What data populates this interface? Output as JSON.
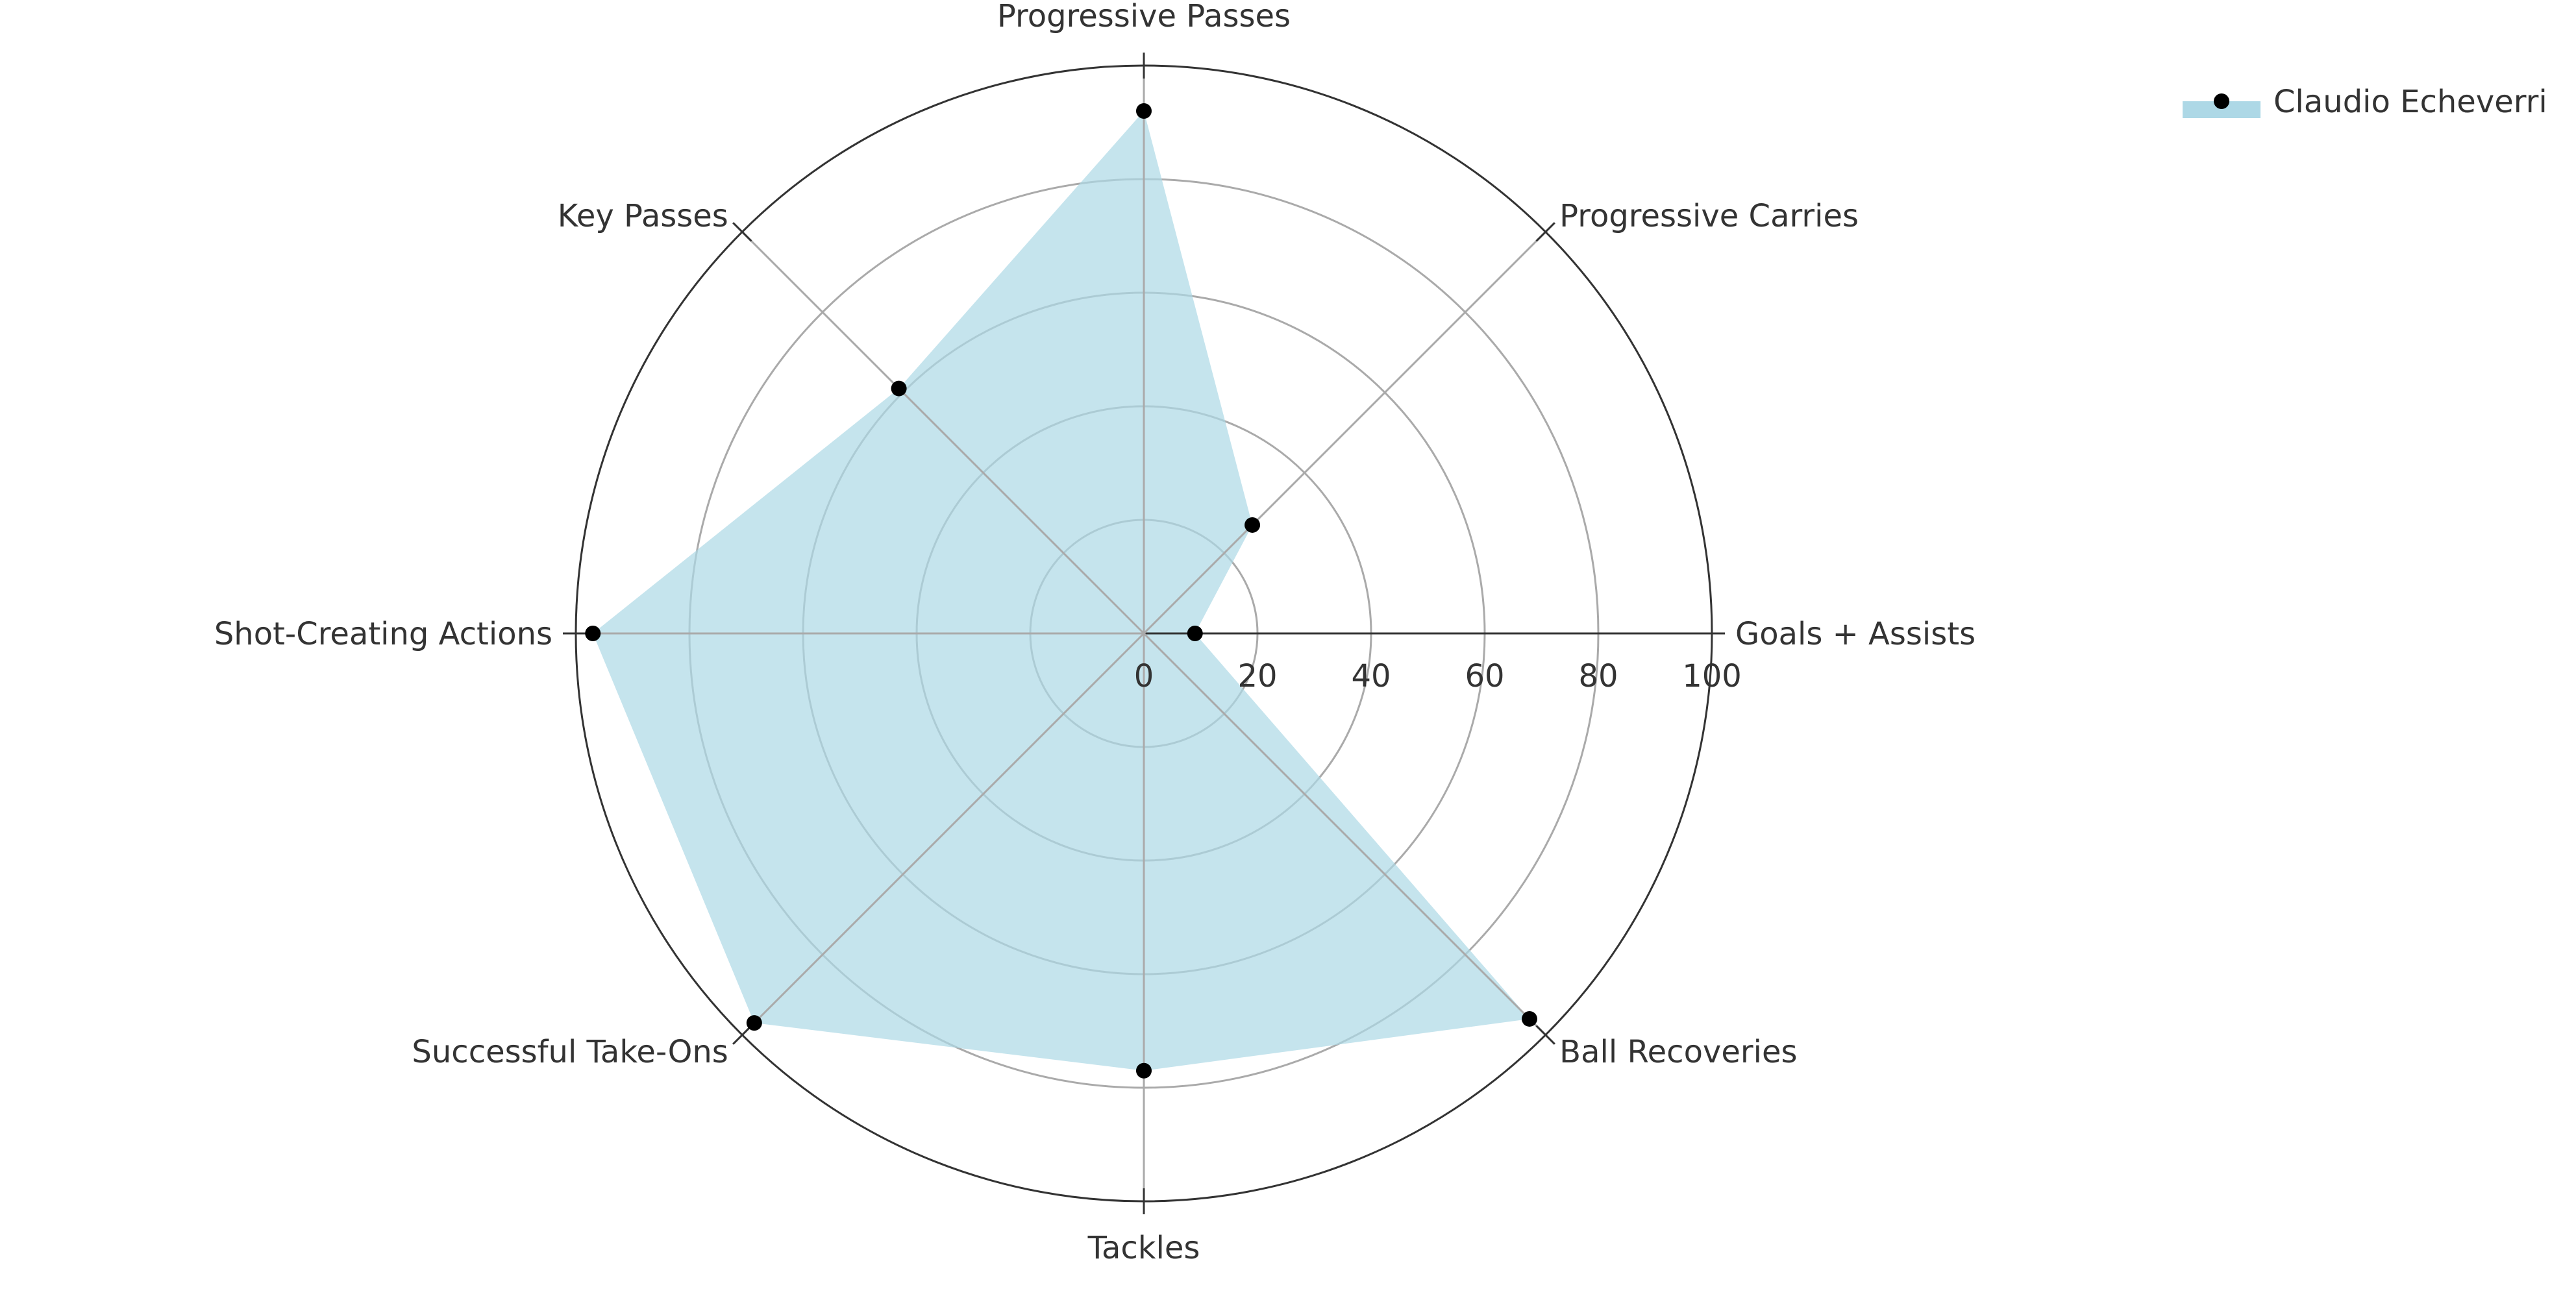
{
  "chart_data": {
    "type": "radar",
    "categories": [
      "Goals + Assists",
      "Progressive Carries",
      "Progressive Passes",
      "Key Passes",
      "Shot-Creating Actions",
      "Successful Take-Ons",
      "Tackles",
      "Ball Recoveries"
    ],
    "series": [
      {
        "name": "Claudio Echeverri",
        "values": [
          9,
          27,
          92,
          61,
          97,
          97,
          77,
          96
        ]
      }
    ],
    "radial_ticks": [
      0,
      20,
      40,
      60,
      80,
      100
    ],
    "rlim": [
      0,
      100
    ],
    "grid": true,
    "legend_position": "top-right",
    "colors": {
      "fill": "#add8e6",
      "marker": "#000000",
      "grid": "#aaaaaa",
      "outline": "#333333",
      "text": "#333333"
    }
  }
}
